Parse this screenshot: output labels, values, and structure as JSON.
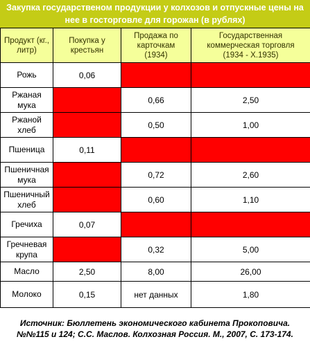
{
  "title": {
    "line1": "Закупка государственом продукции у колхозов и отпускные цены на",
    "line2": "нее в госторговле для горожан (в рублях)"
  },
  "headers": [
    {
      "line1": "Продукт (кг.,",
      "line2": "литр)"
    },
    {
      "line1": "Покупка у",
      "line2": "крестьян"
    },
    {
      "line1": "Продажа по",
      "line2": "карточкам",
      "line3": "(1934)"
    },
    {
      "line1": "Государственная",
      "line2": "коммерческая торговля",
      "line3": "(1934 - X.1935)"
    }
  ],
  "rows": [
    {
      "product": [
        "Рожь"
      ],
      "purchase": "0,06",
      "card": "",
      "commercial": ""
    },
    {
      "product": [
        "Ржаная мука"
      ],
      "purchase": "",
      "card": "0,66",
      "commercial": "2,50"
    },
    {
      "product": [
        "Ржаной хлеб"
      ],
      "purchase": "",
      "card": "0,50",
      "commercial": "1,00"
    },
    {
      "product": [
        "Пшеница"
      ],
      "purchase": "0,11",
      "card": "",
      "commercial": ""
    },
    {
      "product": [
        "Пшеничная",
        "мука"
      ],
      "purchase": "",
      "card": "0,72",
      "commercial": "2,60"
    },
    {
      "product": [
        "Пшеничный",
        "хлеб"
      ],
      "purchase": "",
      "card": "0,60",
      "commercial": "1,10"
    },
    {
      "product": [
        "Гречиха"
      ],
      "purchase": "0,07",
      "card": "",
      "commercial": ""
    },
    {
      "product": [
        "Гречневая",
        "крупа"
      ],
      "purchase": "",
      "card": "0,32",
      "commercial": "5,00"
    },
    {
      "product": [
        "Масло"
      ],
      "purchase": "2,50",
      "card": "8,00",
      "commercial": "26,00"
    },
    {
      "product": [
        "Молоко"
      ],
      "purchase": "0,15",
      "card": "нет данных",
      "commercial": "1,80"
    }
  ],
  "colors": {
    "title_bg": "#c4cc16",
    "header_bg": "#f5ff9a",
    "no_data_cell": "#ff0000"
  },
  "source": {
    "line1": "Источник: Бюллетень экономического кабинета Прокоповича.",
    "line2": "№№115 и 124; С.С. Маслов. Колхозная Россия. М., 2007, С. 173-174."
  }
}
